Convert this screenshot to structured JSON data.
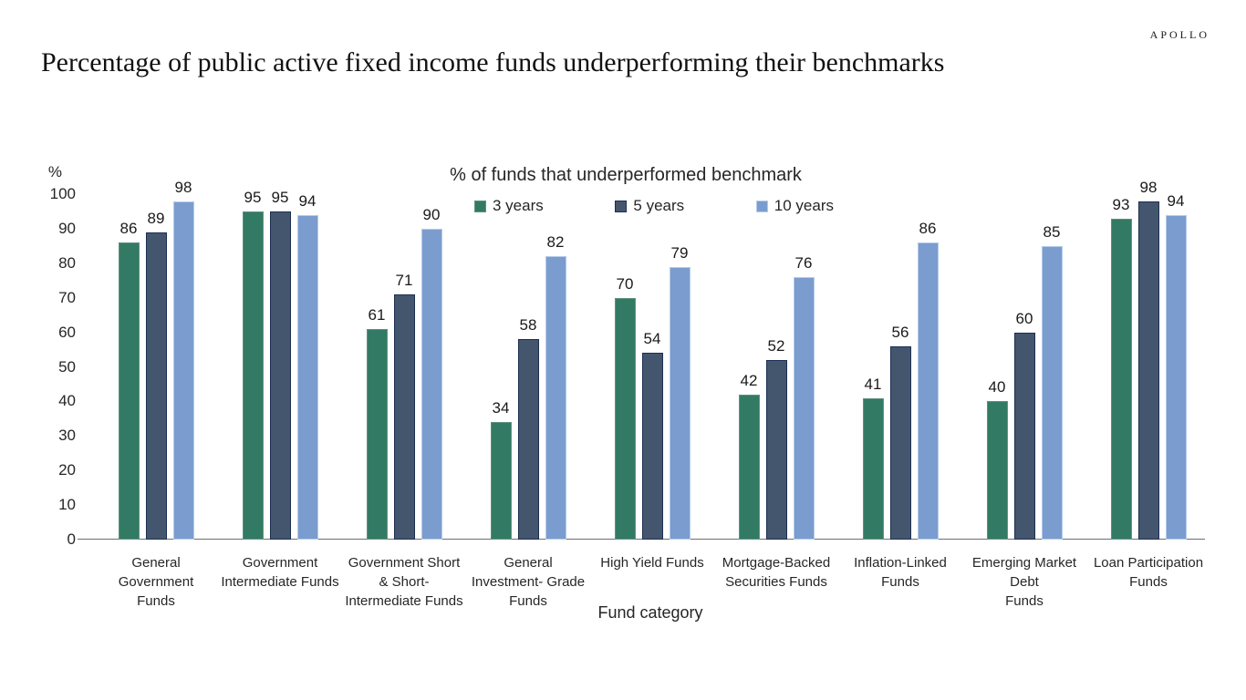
{
  "header": {
    "logo": "APOLLO",
    "title": "Percentage of public active fixed income funds underperforming their benchmarks"
  },
  "chart_data": {
    "type": "bar",
    "title": "% of funds that underperformed benchmark",
    "xlabel": "Fund category",
    "ylabel": "%",
    "ylim": [
      0,
      100
    ],
    "ytick_step": 10,
    "grid": false,
    "legend_position": "top-center",
    "categories": [
      "General\nGovernment\nFunds",
      "Government\nIntermediate Funds",
      "Government Short\n& Short-\nIntermediate Funds",
      "General\nInvestment- Grade\nFunds",
      "High Yield Funds",
      "Mortgage-Backed\nSecurities Funds",
      "Inflation-Linked\nFunds",
      "Emerging Market\nDebt\nFunds",
      "Loan Participation\nFunds"
    ],
    "series": [
      {
        "name": "3 years",
        "color": "#337A64",
        "border_color": "#5F927E",
        "values": [
          86,
          95,
          61,
          34,
          70,
          42,
          41,
          40,
          93
        ]
      },
      {
        "name": "5 years",
        "color": "#44566E",
        "border_color": "#1D2F52",
        "values": [
          89,
          95,
          71,
          58,
          54,
          52,
          56,
          60,
          98
        ]
      },
      {
        "name": "10 years",
        "color": "#7B9CCE",
        "border_color": "#B4CCEA",
        "values": [
          98,
          94,
          90,
          82,
          79,
          76,
          86,
          85,
          94
        ]
      }
    ]
  }
}
